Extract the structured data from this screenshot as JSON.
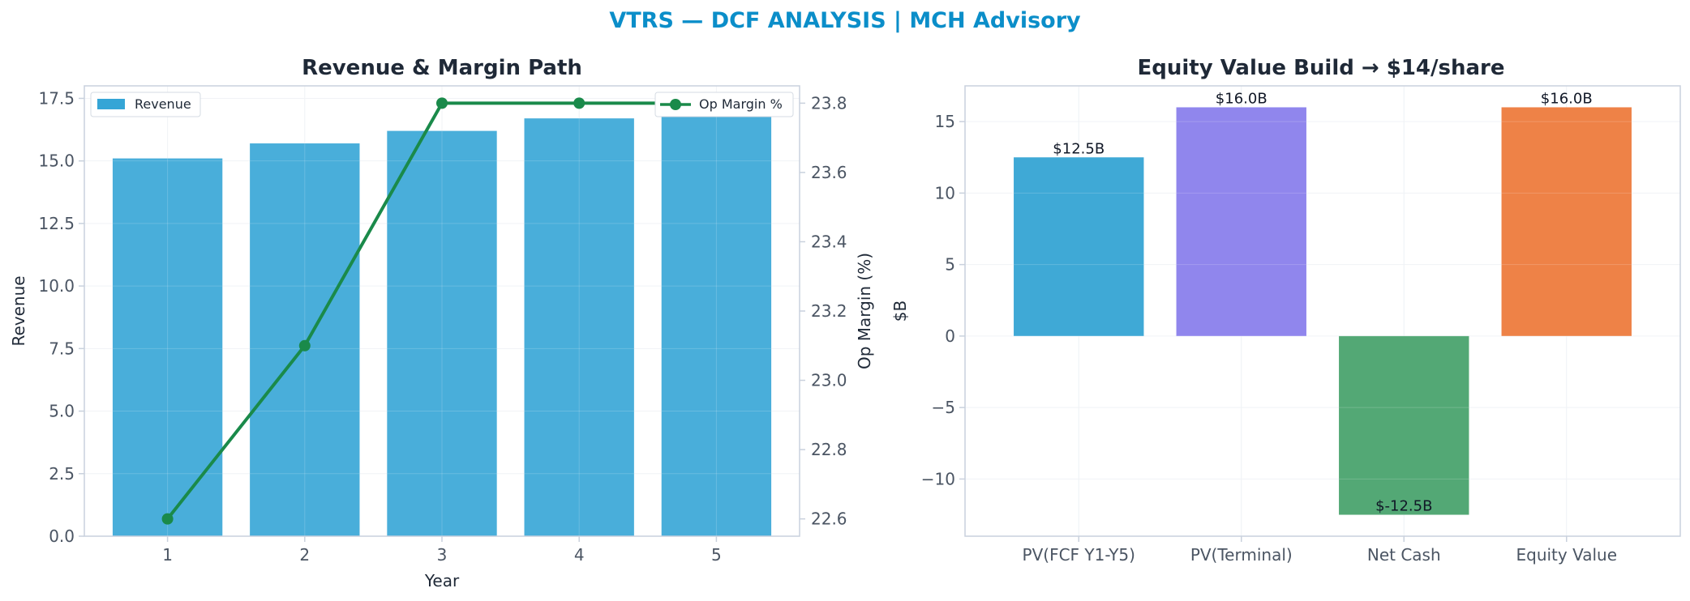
{
  "suptitle": "VTRS — DCF ANALYSIS | MCH Advisory",
  "colors": {
    "title": "#0b8ec9",
    "dark": "#1f2937",
    "tick": "#4b5563",
    "axis": "#c9d1dd",
    "grid": "#eef1f5",
    "revenue_bar": "#35a5d6",
    "margin_line": "#1a8a4a"
  },
  "chart_data": [
    {
      "type": "bar",
      "title": "Revenue & Margin Path",
      "xlabel": "Year",
      "ylabel": "Revenue",
      "y2label": "Op Margin (%)",
      "categories": [
        "1",
        "2",
        "3",
        "4",
        "5"
      ],
      "ylim": [
        0,
        18
      ],
      "yticks": [
        "0.0",
        "2.5",
        "5.0",
        "7.5",
        "10.0",
        "12.5",
        "15.0",
        "17.5"
      ],
      "y2lim": [
        22.55,
        23.85
      ],
      "y2ticks": [
        "22.6",
        "22.8",
        "23.0",
        "23.2",
        "23.4",
        "23.6",
        "23.8"
      ],
      "grid": true,
      "series": [
        {
          "name": "Revenue",
          "type": "bar",
          "axis": "left",
          "values": [
            15.1,
            15.7,
            16.2,
            16.7,
            17.2
          ]
        },
        {
          "name": "Op Margin %",
          "type": "line",
          "axis": "right",
          "values": [
            22.6,
            23.1,
            23.8,
            23.8,
            23.8
          ]
        }
      ],
      "legend": [
        {
          "label": "Revenue",
          "placement": "top-left"
        },
        {
          "label": "Op Margin %",
          "placement": "top-right"
        }
      ]
    },
    {
      "type": "bar",
      "title": "Equity Value Build → $14/share",
      "xlabel": "",
      "ylabel": "$B",
      "categories": [
        "PV(FCF Y1-Y5)",
        "PV(Terminal)",
        "Net Cash",
        "Equity Value"
      ],
      "values": [
        12.5,
        16.0,
        -12.5,
        16.0
      ],
      "data_labels": [
        "$12.5B",
        "$16.0B",
        "$-12.5B",
        "$16.0B"
      ],
      "bar_colors": [
        "#35a4d4",
        "#8a7fec",
        "#4aa36e",
        "#ed7b3d"
      ],
      "ylim": [
        -14,
        17.5
      ],
      "yticks": [
        "−10",
        "−5",
        "0",
        "5",
        "10",
        "15"
      ],
      "grid": true
    }
  ]
}
